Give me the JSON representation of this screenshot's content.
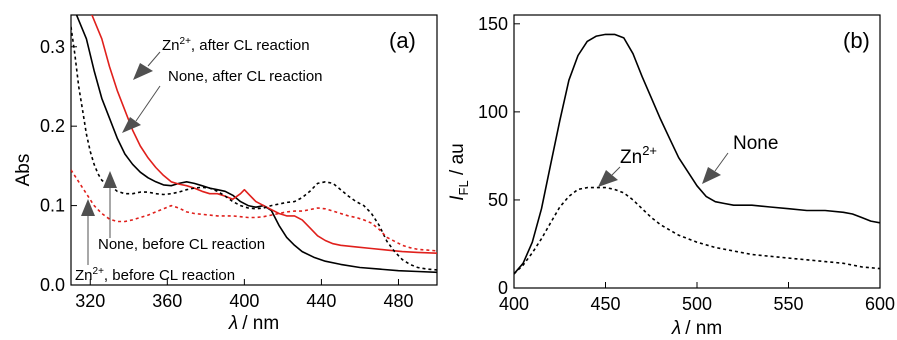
{
  "chart_data": [
    {
      "type": "line",
      "panel_label": "(a)",
      "ylabel": "Abs",
      "xlabel_var": "λ",
      "xlabel_unit": "/ nm",
      "xlim": [
        310,
        500
      ],
      "ylim": [
        0,
        0.34
      ],
      "xticks": [
        320,
        360,
        400,
        440,
        480
      ],
      "yticks": [
        0.0,
        0.1,
        0.2,
        0.3
      ],
      "ytick_labels": [
        "0.0",
        "0.1",
        "0.2",
        "0.3"
      ],
      "series": [
        {
          "color": "#000000",
          "dash": "solid",
          "points": [
            [
              312,
              0.345
            ],
            [
              318,
              0.31
            ],
            [
              322,
              0.27
            ],
            [
              326,
              0.235
            ],
            [
              330,
              0.21
            ],
            [
              334,
              0.185
            ],
            [
              338,
              0.165
            ],
            [
              342,
              0.152
            ],
            [
              346,
              0.142
            ],
            [
              350,
              0.135
            ],
            [
              354,
              0.13
            ],
            [
              358,
              0.126
            ],
            [
              362,
              0.125
            ],
            [
              366,
              0.128
            ],
            [
              370,
              0.13
            ],
            [
              374,
              0.128
            ],
            [
              378,
              0.125
            ],
            [
              382,
              0.122
            ],
            [
              386,
              0.12
            ],
            [
              390,
              0.118
            ],
            [
              394,
              0.113
            ],
            [
              398,
              0.105
            ],
            [
              402,
              0.1
            ],
            [
              406,
              0.098
            ],
            [
              410,
              0.1
            ],
            [
              414,
              0.094
            ],
            [
              418,
              0.075
            ],
            [
              422,
              0.06
            ],
            [
              426,
              0.05
            ],
            [
              430,
              0.042
            ],
            [
              436,
              0.035
            ],
            [
              442,
              0.03
            ],
            [
              450,
              0.026
            ],
            [
              460,
              0.022
            ],
            [
              470,
              0.02
            ],
            [
              480,
              0.018
            ],
            [
              490,
              0.017
            ],
            [
              500,
              0.016
            ]
          ]
        },
        {
          "color": "#e0201c",
          "dash": "solid",
          "points": [
            [
              320,
              0.345
            ],
            [
              326,
              0.31
            ],
            [
              330,
              0.275
            ],
            [
              334,
              0.245
            ],
            [
              338,
              0.22
            ],
            [
              342,
              0.195
            ],
            [
              346,
              0.175
            ],
            [
              350,
              0.16
            ],
            [
              354,
              0.148
            ],
            [
              358,
              0.138
            ],
            [
              362,
              0.13
            ],
            [
              366,
              0.127
            ],
            [
              370,
              0.125
            ],
            [
              374,
              0.122
            ],
            [
              378,
              0.118
            ],
            [
              382,
              0.115
            ],
            [
              386,
              0.115
            ],
            [
              390,
              0.112
            ],
            [
              394,
              0.108
            ],
            [
              398,
              0.115
            ],
            [
              400,
              0.12
            ],
            [
              402,
              0.115
            ],
            [
              406,
              0.105
            ],
            [
              410,
              0.1
            ],
            [
              414,
              0.095
            ],
            [
              418,
              0.09
            ],
            [
              422,
              0.087
            ],
            [
              426,
              0.087
            ],
            [
              430,
              0.082
            ],
            [
              434,
              0.072
            ],
            [
              438,
              0.062
            ],
            [
              442,
              0.056
            ],
            [
              446,
              0.052
            ],
            [
              450,
              0.05
            ],
            [
              458,
              0.048
            ],
            [
              466,
              0.046
            ],
            [
              474,
              0.044
            ],
            [
              482,
              0.042
            ],
            [
              490,
              0.041
            ],
            [
              500,
              0.04
            ]
          ]
        },
        {
          "color": "#000000",
          "dash": "dotted",
          "points": [
            [
              310,
              0.325
            ],
            [
              312,
              0.29
            ],
            [
              314,
              0.25
            ],
            [
              316,
              0.22
            ],
            [
              318,
              0.19
            ],
            [
              320,
              0.168
            ],
            [
              322,
              0.152
            ],
            [
              324,
              0.14
            ],
            [
              326,
              0.132
            ],
            [
              328,
              0.128
            ],
            [
              330,
              0.127
            ],
            [
              332,
              0.122
            ],
            [
              334,
              0.118
            ],
            [
              338,
              0.115
            ],
            [
              342,
              0.115
            ],
            [
              346,
              0.117
            ],
            [
              350,
              0.117
            ],
            [
              354,
              0.115
            ],
            [
              358,
              0.114
            ],
            [
              362,
              0.115
            ],
            [
              366,
              0.117
            ],
            [
              370,
              0.12
            ],
            [
              374,
              0.122
            ],
            [
              378,
              0.123
            ],
            [
              382,
              0.122
            ],
            [
              386,
              0.118
            ],
            [
              390,
              0.112
            ],
            [
              394,
              0.105
            ],
            [
              398,
              0.1
            ],
            [
              402,
              0.097
            ],
            [
              406,
              0.096
            ],
            [
              410,
              0.097
            ],
            [
              414,
              0.1
            ],
            [
              418,
              0.102
            ],
            [
              422,
              0.104
            ],
            [
              426,
              0.105
            ],
            [
              430,
              0.11
            ],
            [
              434,
              0.118
            ],
            [
              438,
              0.128
            ],
            [
              442,
              0.13
            ],
            [
              446,
              0.128
            ],
            [
              450,
              0.12
            ],
            [
              454,
              0.112
            ],
            [
              458,
              0.105
            ],
            [
              462,
              0.1
            ],
            [
              466,
              0.09
            ],
            [
              470,
              0.075
            ],
            [
              474,
              0.055
            ],
            [
              478,
              0.042
            ],
            [
              482,
              0.032
            ],
            [
              486,
              0.026
            ],
            [
              490,
              0.022
            ],
            [
              495,
              0.02
            ],
            [
              500,
              0.019
            ]
          ]
        },
        {
          "color": "#e0201c",
          "dash": "dotted",
          "points": [
            [
              310,
              0.145
            ],
            [
              314,
              0.13
            ],
            [
              318,
              0.115
            ],
            [
              322,
              0.1
            ],
            [
              326,
              0.09
            ],
            [
              330,
              0.083
            ],
            [
              334,
              0.08
            ],
            [
              338,
              0.08
            ],
            [
              342,
              0.082
            ],
            [
              346,
              0.085
            ],
            [
              350,
              0.088
            ],
            [
              354,
              0.092
            ],
            [
              358,
              0.096
            ],
            [
              362,
              0.1
            ],
            [
              366,
              0.097
            ],
            [
              370,
              0.092
            ],
            [
              374,
              0.09
            ],
            [
              378,
              0.089
            ],
            [
              382,
              0.088
            ],
            [
              386,
              0.087
            ],
            [
              390,
              0.087
            ],
            [
              394,
              0.087
            ],
            [
              398,
              0.086
            ],
            [
              402,
              0.085
            ],
            [
              406,
              0.085
            ],
            [
              410,
              0.086
            ],
            [
              414,
              0.088
            ],
            [
              418,
              0.09
            ],
            [
              422,
              0.092
            ],
            [
              426,
              0.093
            ],
            [
              430,
              0.093
            ],
            [
              434,
              0.095
            ],
            [
              438,
              0.097
            ],
            [
              442,
              0.096
            ],
            [
              446,
              0.093
            ],
            [
              450,
              0.09
            ],
            [
              454,
              0.087
            ],
            [
              458,
              0.085
            ],
            [
              462,
              0.082
            ],
            [
              466,
              0.078
            ],
            [
              470,
              0.07
            ],
            [
              474,
              0.06
            ],
            [
              478,
              0.055
            ],
            [
              482,
              0.05
            ],
            [
              486,
              0.047
            ],
            [
              490,
              0.045
            ],
            [
              495,
              0.044
            ],
            [
              500,
              0.043
            ]
          ]
        }
      ],
      "annotations": [
        {
          "text_main": "Zn",
          "text_sup": "2+",
          "text_rest": ", after CL reaction"
        },
        {
          "text_main": "None, after CL reaction",
          "text_sup": "",
          "text_rest": ""
        },
        {
          "text_main": "None, before CL reaction",
          "text_sup": "",
          "text_rest": ""
        },
        {
          "text_main": "Zn",
          "text_sup": "2+",
          "text_rest": ", before CL reaction"
        }
      ]
    },
    {
      "type": "line",
      "panel_label": "(b)",
      "ylabel_var": "I",
      "ylabel_sub": "FL",
      "ylabel_unit": " / au",
      "xlabel_var": "λ",
      "xlabel_unit": "/ nm",
      "xlim": [
        400,
        600
      ],
      "ylim": [
        0,
        155
      ],
      "xticks": [
        400,
        450,
        500,
        550,
        600
      ],
      "yticks": [
        0,
        50,
        100,
        150
      ],
      "series": [
        {
          "color": "#000000",
          "dash": "solid",
          "points": [
            [
              400,
              8
            ],
            [
              405,
              14
            ],
            [
              410,
              26
            ],
            [
              415,
              45
            ],
            [
              420,
              70
            ],
            [
              425,
              95
            ],
            [
              430,
              118
            ],
            [
              435,
              132
            ],
            [
              440,
              140
            ],
            [
              445,
              143
            ],
            [
              450,
              144
            ],
            [
              455,
              144
            ],
            [
              460,
              142
            ],
            [
              465,
              133
            ],
            [
              470,
              120
            ],
            [
              475,
              108
            ],
            [
              480,
              96
            ],
            [
              485,
              85
            ],
            [
              490,
              74
            ],
            [
              495,
              66
            ],
            [
              500,
              58
            ],
            [
              505,
              52
            ],
            [
              510,
              49
            ],
            [
              515,
              48
            ],
            [
              520,
              47
            ],
            [
              525,
              47
            ],
            [
              530,
              47
            ],
            [
              540,
              46
            ],
            [
              550,
              45
            ],
            [
              560,
              44
            ],
            [
              570,
              44
            ],
            [
              580,
              43
            ],
            [
              585,
              42
            ],
            [
              590,
              40
            ],
            [
              595,
              38
            ],
            [
              600,
              37
            ]
          ]
        },
        {
          "color": "#000000",
          "dash": "dotted",
          "points": [
            [
              400,
              8
            ],
            [
              405,
              13
            ],
            [
              410,
              20
            ],
            [
              415,
              28
            ],
            [
              420,
              37
            ],
            [
              425,
              46
            ],
            [
              430,
              52
            ],
            [
              435,
              56
            ],
            [
              440,
              57
            ],
            [
              445,
              57
            ],
            [
              450,
              57
            ],
            [
              455,
              56
            ],
            [
              460,
              54
            ],
            [
              465,
              50
            ],
            [
              470,
              45
            ],
            [
              475,
              40
            ],
            [
              480,
              36
            ],
            [
              485,
              33
            ],
            [
              490,
              30
            ],
            [
              495,
              28
            ],
            [
              500,
              26
            ],
            [
              510,
              23
            ],
            [
              520,
              21
            ],
            [
              530,
              19
            ],
            [
              540,
              18
            ],
            [
              550,
              17
            ],
            [
              560,
              16
            ],
            [
              570,
              15
            ],
            [
              580,
              14
            ],
            [
              590,
              12
            ],
            [
              600,
              11
            ]
          ]
        }
      ],
      "annotations": [
        {
          "text_main": "Zn",
          "text_sup": "2+"
        },
        {
          "text_main": "None",
          "text_sup": ""
        }
      ]
    }
  ]
}
